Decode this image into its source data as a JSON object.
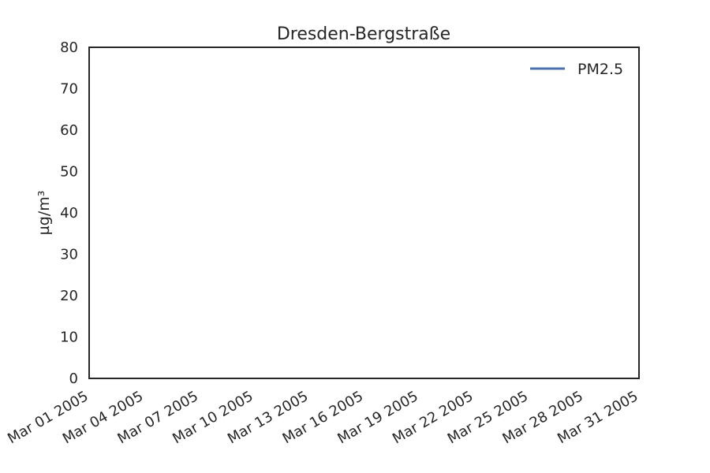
{
  "chart_data": {
    "type": "line",
    "title": "Dresden-Bergstraße",
    "xlabel": "",
    "ylabel": "µg/m³",
    "xlim": [
      "2005-03-01",
      "2005-03-31"
    ],
    "ylim": [
      0,
      80
    ],
    "x_ticks": [
      {
        "date": "2005-03-01",
        "label": "Mar 01 2005"
      },
      {
        "date": "2005-03-04",
        "label": "Mar 04 2005"
      },
      {
        "date": "2005-03-07",
        "label": "Mar 07 2005"
      },
      {
        "date": "2005-03-10",
        "label": "Mar 10 2005"
      },
      {
        "date": "2005-03-13",
        "label": "Mar 13 2005"
      },
      {
        "date": "2005-03-16",
        "label": "Mar 16 2005"
      },
      {
        "date": "2005-03-19",
        "label": "Mar 19 2005"
      },
      {
        "date": "2005-03-22",
        "label": "Mar 22 2005"
      },
      {
        "date": "2005-03-25",
        "label": "Mar 25 2005"
      },
      {
        "date": "2005-03-28",
        "label": "Mar 28 2005"
      },
      {
        "date": "2005-03-31",
        "label": "Mar 31 2005"
      }
    ],
    "y_ticks": [
      0,
      10,
      20,
      30,
      40,
      50,
      60,
      70,
      80
    ],
    "series": [
      {
        "name": "PM2.5",
        "color": "#4c72b0",
        "x": [],
        "y": []
      }
    ],
    "legend": {
      "position": "top-right"
    },
    "grid": false
  }
}
